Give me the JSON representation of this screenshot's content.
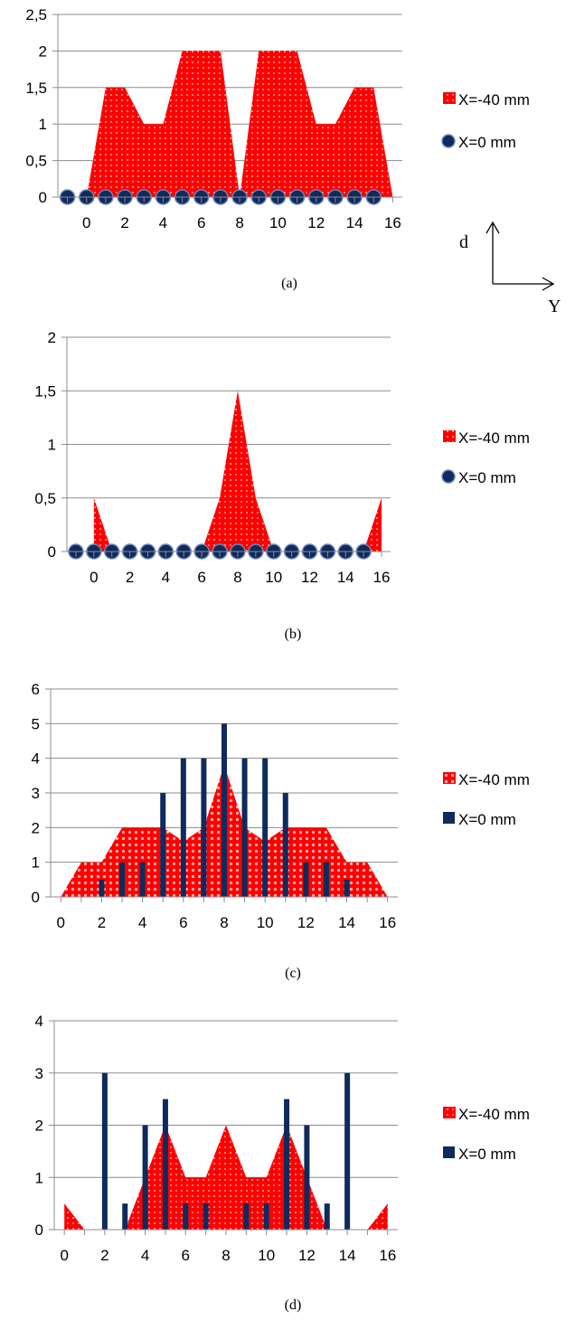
{
  "chart_data": [
    {
      "type": "area",
      "caption": "(a)",
      "x_ticks": [
        0,
        2,
        4,
        6,
        8,
        10,
        12,
        14,
        16
      ],
      "y_ticks": [
        "0",
        "0,5",
        "1",
        "1,5",
        "2",
        "2,5"
      ],
      "ylim": [
        0,
        2.5
      ],
      "xlim": [
        -1.5,
        16.5
      ],
      "grid": "horizontal",
      "legend_position": "right",
      "series": [
        {
          "name": "X=-40 mm",
          "kind": "area",
          "color": "#ff0000",
          "x": [
            0,
            1,
            2,
            3,
            4,
            5,
            6,
            7,
            8,
            9,
            10,
            11,
            12,
            13,
            14,
            15,
            16
          ],
          "values": [
            0,
            1.5,
            1.5,
            1,
            1,
            2,
            2,
            2,
            0,
            2,
            2,
            2,
            1,
            1,
            1.5,
            1.5,
            0
          ]
        },
        {
          "name": "X=0 mm",
          "kind": "markers",
          "color": "#0f2a5c",
          "x": [
            -1,
            0,
            1,
            2,
            3,
            4,
            5,
            6,
            7,
            8,
            9,
            10,
            11,
            12,
            13,
            14,
            15
          ],
          "values": [
            0,
            0,
            0,
            0,
            0,
            0,
            0,
            0,
            0,
            0,
            0,
            0,
            0,
            0,
            0,
            0,
            0
          ]
        }
      ]
    },
    {
      "type": "area",
      "caption": "(b)",
      "x_ticks": [
        0,
        2,
        4,
        6,
        8,
        10,
        12,
        14,
        16
      ],
      "y_ticks": [
        "0",
        "0,5",
        "1",
        "1,5",
        "2"
      ],
      "ylim": [
        0,
        2
      ],
      "xlim": [
        -1.5,
        16.5
      ],
      "grid": "horizontal",
      "legend_position": "right",
      "series": [
        {
          "name": "X=-40 mm",
          "kind": "area",
          "color": "#ff0000",
          "x": [
            0,
            1,
            2,
            3,
            4,
            5,
            6,
            7,
            8,
            9,
            10,
            11,
            12,
            13,
            14,
            15,
            16
          ],
          "values": [
            0.5,
            0,
            0,
            0,
            0,
            0,
            0,
            0.5,
            1.5,
            0.5,
            0,
            0,
            0,
            0,
            0,
            0,
            0.5
          ]
        },
        {
          "name": "X=0 mm",
          "kind": "markers",
          "color": "#0f2a5c",
          "x": [
            -1,
            0,
            1,
            2,
            3,
            4,
            5,
            6,
            7,
            8,
            9,
            10,
            11,
            12,
            13,
            14,
            15
          ],
          "values": [
            0,
            0,
            0,
            0,
            0,
            0,
            0,
            0,
            0,
            0,
            0,
            0,
            0,
            0,
            0,
            0,
            0
          ]
        }
      ]
    },
    {
      "type": "bar",
      "caption": "(c)",
      "x_ticks": [
        0,
        2,
        4,
        6,
        8,
        10,
        12,
        14,
        16
      ],
      "y_ticks": [
        "0",
        "1",
        "2",
        "3",
        "4",
        "5",
        "6"
      ],
      "ylim": [
        0,
        6
      ],
      "xlim": [
        -0.5,
        16.5
      ],
      "grid": "horizontal",
      "legend_position": "right",
      "series": [
        {
          "name": "X=-40 mm",
          "kind": "area",
          "color": "#ff0000",
          "x": [
            0,
            1,
            2,
            3,
            4,
            5,
            6,
            7,
            8,
            9,
            10,
            11,
            12,
            13,
            14,
            15,
            16
          ],
          "values": [
            0,
            1,
            1,
            2,
            2,
            2,
            1.6,
            2,
            3.8,
            2,
            1.6,
            2,
            2,
            2,
            1,
            1,
            0
          ]
        },
        {
          "name": "X=0 mm",
          "kind": "bar",
          "color": "#0f2a5c",
          "x": [
            2,
            3,
            4,
            5,
            6,
            7,
            8,
            9,
            10,
            11,
            12,
            13,
            14
          ],
          "values": [
            0.5,
            1,
            1,
            3,
            4,
            4,
            5,
            4,
            4,
            3,
            1,
            1,
            0.5
          ]
        }
      ]
    },
    {
      "type": "bar",
      "caption": "(d)",
      "x_ticks": [
        0,
        2,
        4,
        6,
        8,
        10,
        12,
        14,
        16
      ],
      "y_ticks": [
        "0",
        "1",
        "2",
        "3",
        "4"
      ],
      "ylim": [
        0,
        4
      ],
      "xlim": [
        -0.5,
        16.5
      ],
      "grid": "horizontal",
      "legend_position": "right",
      "series": [
        {
          "name": "X=-40 mm",
          "kind": "area",
          "color": "#ff0000",
          "x": [
            0,
            1,
            2,
            3,
            4,
            5,
            6,
            7,
            8,
            9,
            10,
            11,
            12,
            13,
            14,
            15,
            16
          ],
          "values": [
            0.5,
            0,
            0,
            0,
            1,
            2,
            1,
            1,
            2,
            1,
            1,
            2,
            1,
            0,
            0,
            0,
            0.5
          ]
        },
        {
          "name": "X=0 mm",
          "kind": "bar",
          "color": "#0f2a5c",
          "x": [
            2,
            3,
            4,
            5,
            6,
            7,
            9,
            10,
            11,
            12,
            13,
            14
          ],
          "values": [
            3,
            0.5,
            2,
            2.5,
            0.5,
            0.5,
            0.5,
            0.5,
            2.5,
            2,
            0.5,
            3
          ]
        }
      ]
    }
  ],
  "axes_indicator": {
    "vertical_label": "d",
    "horizontal_label": "Y"
  }
}
